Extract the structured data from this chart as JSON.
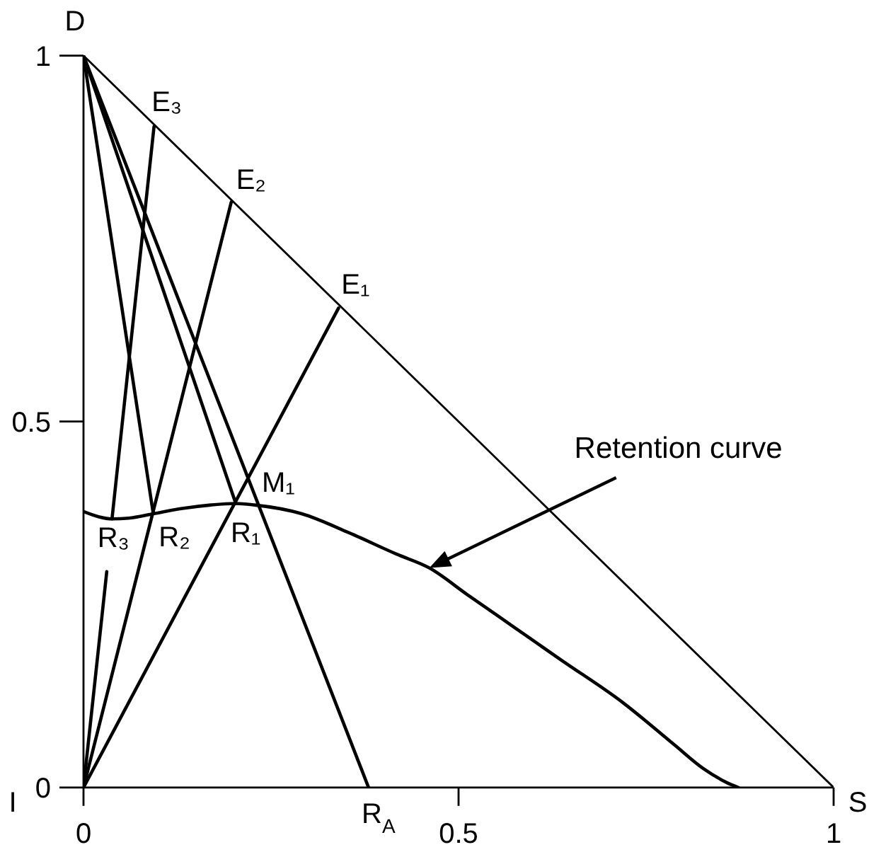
{
  "chart_data": {
    "type": "line",
    "xlabel": "S",
    "ylabel": "D",
    "xlim": [
      0,
      1
    ],
    "ylim": [
      0,
      1
    ],
    "xticks": [
      0,
      0.5,
      1
    ],
    "yticks": [
      0,
      0.5,
      1
    ],
    "marker": "none",
    "line_style": "solid",
    "series": [
      {
        "color": "#000000",
        "x": [
          0,
          1
        ],
        "values": [
          1,
          0
        ]
      },
      {
        "name": "Retention curve",
        "color": "#000000",
        "x": [
          0,
          0.02,
          0.038,
          0.06,
          0.093,
          0.13,
          0.17,
          0.203,
          0.228,
          0.291,
          0.354,
          0.417,
          0.461,
          0.511,
          0.574,
          0.637,
          0.719,
          0.788,
          0.826,
          0.857,
          0.873
        ],
        "values": [
          0.377,
          0.37,
          0.367,
          0.368,
          0.374,
          0.381,
          0.386,
          0.388,
          0.386,
          0.374,
          0.348,
          0.319,
          0.3,
          0.264,
          0.219,
          0.174,
          0.116,
          0.058,
          0.026,
          0.007,
          0
        ]
      },
      {
        "color": "#000000",
        "x": [
          0,
          0.38
        ],
        "values": [
          1,
          0
        ]
      },
      {
        "color": "#000000",
        "x": [
          0,
          0.203
        ],
        "values": [
          1,
          0.388
        ]
      },
      {
        "color": "#000000",
        "x": [
          0,
          0.093
        ],
        "values": [
          1,
          0.374
        ]
      },
      {
        "color": "#000000",
        "x": [
          0,
          0.34
        ],
        "values": [
          0,
          0.655
        ]
      },
      {
        "color": "#000000",
        "x": [
          0,
          0.197
        ],
        "values": [
          0,
          0.8
        ]
      },
      {
        "color": "#000000",
        "x": [
          0,
          0.031,
          0.035,
          0.038,
          0.094
        ],
        "values": [
          0,
          0.295,
          null,
          0.367,
          0.903
        ]
      }
    ],
    "annotations": [
      {
        "text": "I",
        "x": 0,
        "y": 0
      },
      {
        "text": "R$_{A}$",
        "x": 0.38,
        "y": 0
      },
      {
        "text": "E₁",
        "x": 0.34,
        "y": 0.655
      },
      {
        "text": "E₂",
        "x": 0.197,
        "y": 0.8
      },
      {
        "text": "E₃",
        "x": 0.094,
        "y": 0.903
      },
      {
        "text": "M₁",
        "x": 0.222,
        "y": 0.416
      },
      {
        "text": "R₁",
        "x": 0.203,
        "y": 0.388
      },
      {
        "text": "R₂",
        "x": 0.093,
        "y": 0.374
      },
      {
        "text": "R₃",
        "x": 0.038,
        "y": 0.367
      }
    ]
  }
}
